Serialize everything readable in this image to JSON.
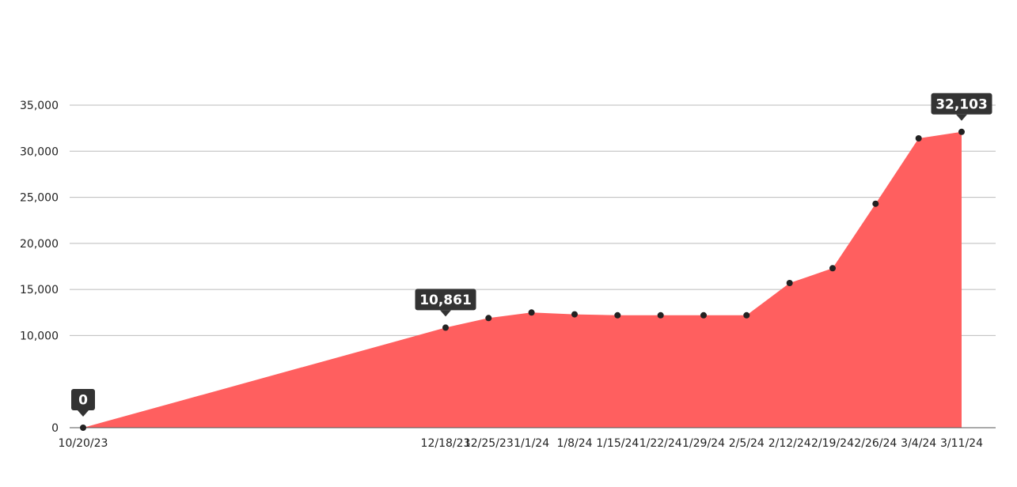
{
  "chart_data": {
    "type": "area",
    "title": "",
    "xlabel": "",
    "ylabel": "",
    "x": [
      "10/20/23",
      "12/18/23",
      "12/25/23",
      "1/1/24",
      "1/8/24",
      "1/15/24",
      "1/22/24",
      "1/29/24",
      "2/5/24",
      "2/12/24",
      "2/19/24",
      "2/26/24",
      "3/4/24",
      "3/11/24"
    ],
    "x_dates": [
      "2023-10-20",
      "2023-12-18",
      "2023-12-25",
      "2024-01-01",
      "2024-01-08",
      "2024-01-15",
      "2024-01-22",
      "2024-01-29",
      "2024-02-05",
      "2024-02-12",
      "2024-02-19",
      "2024-02-26",
      "2024-03-04",
      "2024-03-11"
    ],
    "series": [
      {
        "values": [
          0,
          10861,
          11900,
          12500,
          12300,
          12200,
          12200,
          12200,
          12200,
          15700,
          17300,
          24300,
          31400,
          32103
        ],
        "color": "#ff5f5f"
      }
    ],
    "ylim": [
      0,
      35000
    ],
    "yticks": [
      0,
      10000,
      15000,
      20000,
      25000,
      30000,
      35000
    ],
    "ytick_labels": [
      "0",
      "10,000",
      "15,000",
      "20,000",
      "25,000",
      "30,000",
      "35,000"
    ],
    "grid": true,
    "legend": "none",
    "annotations": [
      {
        "index": 0,
        "label": "0"
      },
      {
        "index": 1,
        "label": "10,861"
      },
      {
        "index": 13,
        "label": "32,103"
      }
    ],
    "colors": {
      "area": "#ff5f5f",
      "marker": "#222222",
      "grid": "#bbbbbb",
      "callout": "#333333"
    }
  }
}
